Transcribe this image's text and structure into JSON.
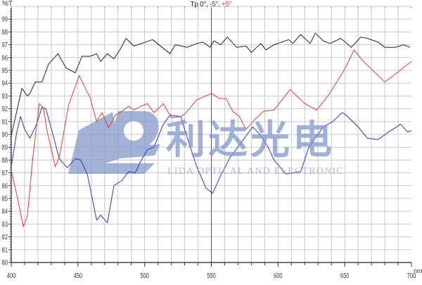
{
  "chart_data": {
    "type": "line",
    "title_parts": [
      {
        "text": "Tp 0°,",
        "color": "#222222"
      },
      {
        "text": " -5°,",
        "color": "#3333cc"
      },
      {
        "text": " +5°",
        "color": "#e03a3a"
      }
    ],
    "ylabel": "%T",
    "xlabel": "nm",
    "xlim": [
      400,
      700
    ],
    "ylim": [
      80,
      100
    ],
    "xticks": [
      400,
      450,
      500,
      550,
      600,
      650,
      700
    ],
    "yticks": [
      80,
      81,
      82,
      83,
      84,
      85,
      86,
      87,
      88,
      89,
      90,
      91,
      92,
      93,
      94,
      95,
      96,
      97,
      98,
      99
    ],
    "grid": true,
    "grid_x_step": 10,
    "grid_y_step": 1,
    "cursor_x": 550,
    "series": [
      {
        "name": "0°",
        "color": "#222222",
        "x": [
          400,
          408,
          412,
          414,
          418,
          423,
          428,
          435,
          441,
          448,
          453,
          459,
          464,
          467,
          472,
          477,
          482,
          486,
          492,
          506,
          519,
          523,
          532,
          539,
          544,
          549,
          552,
          557,
          562,
          569,
          576,
          580,
          587,
          591,
          597,
          608,
          611,
          617,
          624,
          628,
          634,
          639,
          647,
          655,
          662,
          667,
          675,
          680,
          688,
          694,
          699
        ],
        "y": [
          89.9,
          93.6,
          93.0,
          93.2,
          94.1,
          94.1,
          95.5,
          96.3,
          95.2,
          94.8,
          96.1,
          96.1,
          96.3,
          95.7,
          96.3,
          95.9,
          96.7,
          97.5,
          96.9,
          97.4,
          96.3,
          97.0,
          96.8,
          97.1,
          97.2,
          96.8,
          97.3,
          97.0,
          97.6,
          96.8,
          96.9,
          96.4,
          97.1,
          96.6,
          97.0,
          97.4,
          97.1,
          97.8,
          97.1,
          97.9,
          97.3,
          97.1,
          97.5,
          96.8,
          97.6,
          97.5,
          97.2,
          96.8,
          96.8,
          97.0,
          96.8
        ]
      },
      {
        "name": "-5°",
        "color": "#3333cc",
        "x": [
          400,
          404,
          407,
          410,
          414,
          419,
          423,
          426,
          432,
          436,
          442,
          448,
          452,
          457,
          464,
          467,
          472,
          477,
          483,
          488,
          493,
          497,
          502,
          507,
          514,
          519,
          527,
          532,
          539,
          546,
          551,
          557,
          564,
          572,
          581,
          587,
          592,
          597,
          606,
          617,
          623,
          634,
          641,
          648,
          650,
          660,
          667,
          675,
          683,
          692,
          697,
          700
        ],
        "y": [
          87.5,
          90.1,
          91.4,
          90.4,
          89.7,
          90.8,
          92.1,
          92.0,
          89.7,
          88.1,
          87.4,
          88.1,
          88.0,
          86.9,
          83.3,
          83.7,
          83.1,
          86.0,
          86.4,
          87.1,
          87.0,
          87.9,
          88.8,
          89.0,
          90.8,
          91.5,
          91.4,
          89.7,
          87.5,
          85.8,
          85.4,
          86.8,
          88.2,
          89.3,
          90.6,
          89.9,
          89.1,
          88.0,
          86.9,
          87.1,
          89.0,
          90.6,
          91.0,
          91.7,
          91.6,
          90.6,
          89.7,
          89.6,
          90.2,
          90.8,
          90.2,
          90.3
        ]
      },
      {
        "name": "+5°",
        "color": "#e03a3a",
        "x": [
          400,
          405,
          409,
          412,
          416,
          421,
          424,
          427,
          433,
          436,
          443,
          451,
          456,
          459,
          464,
          468,
          473,
          478,
          483,
          488,
          492,
          497,
          502,
          507,
          514,
          520,
          527,
          530,
          539,
          550,
          556,
          561,
          566,
          571,
          576,
          583,
          589,
          597,
          609,
          620,
          629,
          638,
          644,
          650,
          657,
          663,
          671,
          680,
          688,
          695,
          700
        ],
        "y": [
          87.2,
          84.9,
          82.8,
          83.6,
          88.0,
          92.4,
          92.1,
          90.2,
          87.5,
          88.2,
          92.3,
          94.6,
          93.5,
          92.9,
          91.0,
          91.7,
          90.5,
          91.5,
          91.8,
          92.2,
          91.9,
          92.2,
          92.4,
          91.7,
          92.4,
          91.3,
          91.4,
          91.6,
          92.7,
          93.2,
          92.8,
          92.8,
          91.8,
          91.4,
          90.4,
          91.2,
          91.8,
          91.9,
          93.5,
          92.4,
          91.9,
          93.1,
          94.1,
          95.1,
          96.6,
          95.8,
          95.0,
          94.1,
          94.7,
          95.3,
          95.7
        ]
      }
    ]
  },
  "watermark": {
    "logo": "LIDA logo",
    "chinese": "利达光电",
    "english": "LIDA OPTICAL AND ELECTRONIC",
    "color": "#7f97c9"
  }
}
